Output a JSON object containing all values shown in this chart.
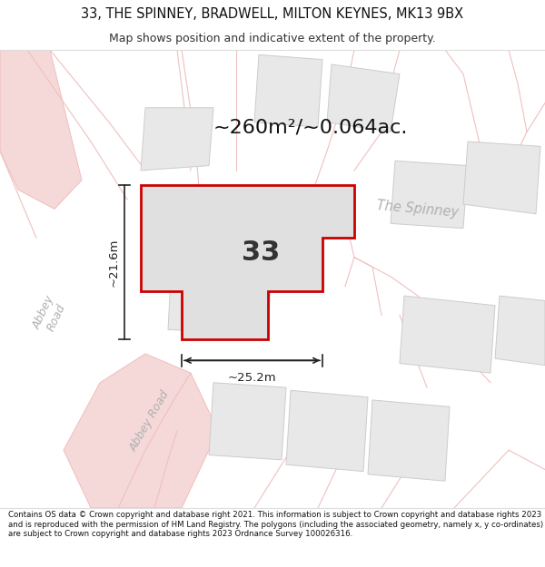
{
  "title_line1": "33, THE SPINNEY, BRADWELL, MILTON KEYNES, MK13 9BX",
  "title_line2": "Map shows position and indicative extent of the property.",
  "area_text": "~260m²/~0.064ac.",
  "label_33": "33",
  "dim_width": "~25.2m",
  "dim_height": "~21.6m",
  "footer_text": "Contains OS data © Crown copyright and database right 2021. This information is subject to Crown copyright and database rights 2023 and is reproduced with the permission of HM Land Registry. The polygons (including the associated geometry, namely x, y co-ordinates) are subject to Crown copyright and database rights 2023 Ordnance Survey 100026316.",
  "bg_color": "#ffffff",
  "map_bg": "#ffffff",
  "bld_fill": "#e8e8e8",
  "bld_edge": "#cccccc",
  "road_fill": "#f5d8d8",
  "road_edge": "#f0b8b8",
  "plot_fill": "#e0e0e0",
  "plot_edge": "#cc0000",
  "road_text_color": "#aaaaaa",
  "dim_color": "#222222",
  "area_text_color": "#111111",
  "label_color": "#333333"
}
